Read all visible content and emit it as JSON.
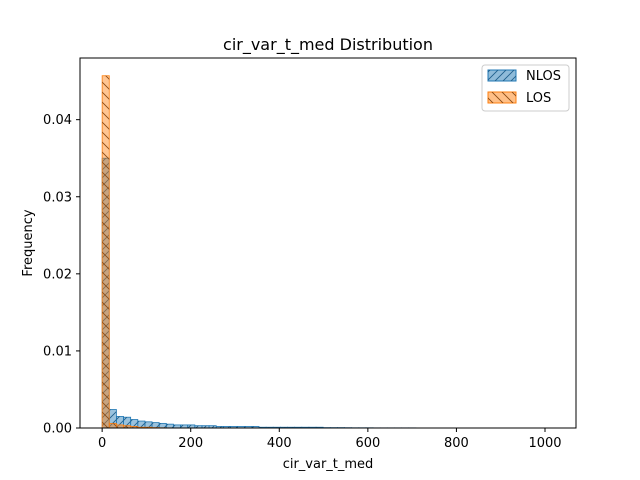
{
  "chart_data": {
    "type": "bar",
    "title": "cir_var_t_med Distribution",
    "xlabel": "cir_var_t_med",
    "ylabel": "Frequency",
    "xlim": [
      -50,
      1070
    ],
    "ylim": [
      0,
      0.048
    ],
    "xticks": [
      0,
      200,
      400,
      600,
      800,
      1000
    ],
    "yticks": [
      0.0,
      0.01,
      0.02,
      0.03,
      0.04
    ],
    "ytick_labels": [
      "0.00",
      "0.01",
      "0.02",
      "0.03",
      "0.04"
    ],
    "grid": false,
    "legend_position": "top-right",
    "bin_start": 0,
    "bin_width": 16.1,
    "series": [
      {
        "name": "NLOS",
        "color": "#1f77b4",
        "hatch": "diagonal-forward",
        "values": [
          0.035,
          0.0024,
          0.0015,
          0.0014,
          0.0011,
          0.0009,
          0.0008,
          0.0007,
          0.0006,
          0.0005,
          0.0004,
          0.0004,
          0.0004,
          0.0003,
          0.0003,
          0.0003,
          0.0002,
          0.0002,
          0.0002,
          0.0002,
          0.0002,
          0.0002,
          0.0001,
          0.0001,
          0.0001,
          0.0001,
          0.0001,
          0.0001,
          0.0001,
          0.0001,
          0.0001,
          5e-05,
          5e-05,
          5e-05,
          4e-05,
          3e-05,
          3e-05,
          3e-05,
          2e-05,
          2e-05,
          2e-05,
          2e-05,
          2e-05,
          2e-05,
          1e-05,
          1e-05,
          1e-05,
          1e-05,
          1e-05,
          1e-05,
          1e-05,
          1e-05,
          1e-05,
          1e-05,
          1e-05,
          1e-05,
          1e-05,
          1e-05,
          1e-05,
          1e-05,
          1e-05,
          1e-05,
          1e-05
        ]
      },
      {
        "name": "LOS",
        "color": "#ff7f0e",
        "hatch": "cross-back",
        "values": [
          0.0457,
          0.0006,
          0.0004,
          0.0003,
          0.0002,
          0.0001,
          0.0001,
          5e-05,
          3e-05,
          2e-05
        ]
      }
    ]
  }
}
